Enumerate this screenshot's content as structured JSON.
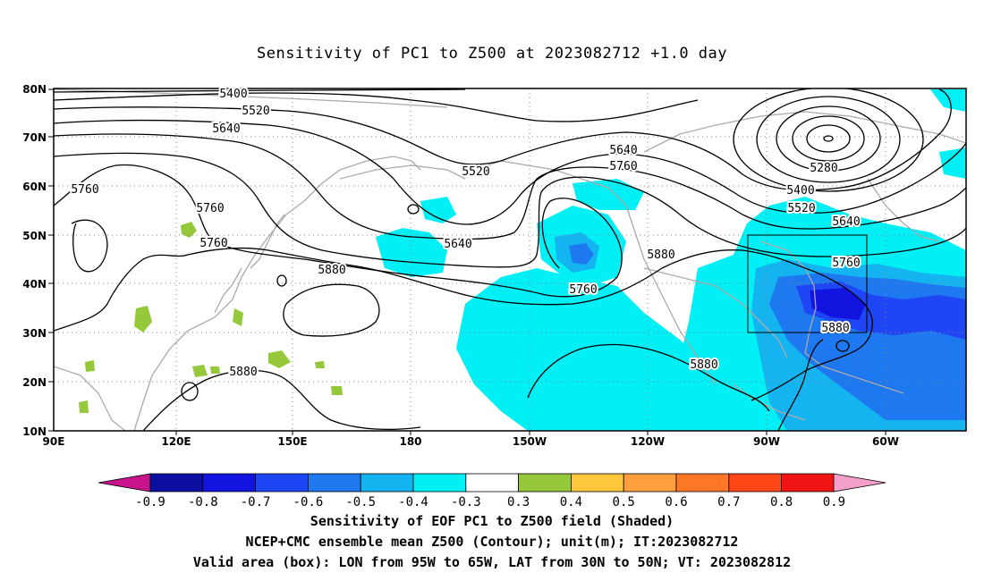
{
  "title": "Sensitivity of PC1 to Z500 at 2023082712 +1.0 day",
  "map": {
    "lat_ticks": [
      "80N",
      "70N",
      "60N",
      "50N",
      "40N",
      "30N",
      "20N",
      "10N"
    ],
    "lon_ticks": [
      "90E",
      "120E",
      "150E",
      "180",
      "150W",
      "120W",
      "90W",
      "60W"
    ],
    "contour_labels": [
      "5400",
      "5520",
      "5640",
      "5760",
      "5760",
      "5760",
      "5520",
      "5640",
      "5760",
      "5640",
      "5880",
      "5880",
      "5760",
      "5880",
      "5880",
      "5280",
      "5400",
      "5520",
      "5640",
      "5760",
      "5880"
    ],
    "valid_box": {
      "lon_range": [
        "95W",
        "65W"
      ],
      "lat_range": [
        "30N",
        "50N"
      ]
    }
  },
  "colorbar": {
    "levels": [
      "-0.9",
      "-0.8",
      "-0.7",
      "-0.6",
      "-0.5",
      "-0.4",
      "-0.3",
      "0.3",
      "0.4",
      "0.5",
      "0.6",
      "0.7",
      "0.8",
      "0.9"
    ],
    "colors": [
      "#0a0fa0",
      "#1414e0",
      "#1e46f5",
      "#1e78f0",
      "#14b4f0",
      "#00f0f5",
      "#ffffff",
      "#96c83c",
      "#ffc83c",
      "#ffa03c",
      "#ff7828",
      "#ff4614",
      "#f01414"
    ],
    "low_arrow_color": "#c8148c",
    "high_arrow_color": "#f5a0c8"
  },
  "captions": [
    "Sensitivity of EOF PC1 to Z500 field (Shaded)",
    "NCEP+CMC ensemble mean Z500 (Contour); unit(m); IT:2023082712",
    "Valid area (box): LON from 95W to 65W, LAT from 30N to 50N; VT: 2023082812"
  ]
}
